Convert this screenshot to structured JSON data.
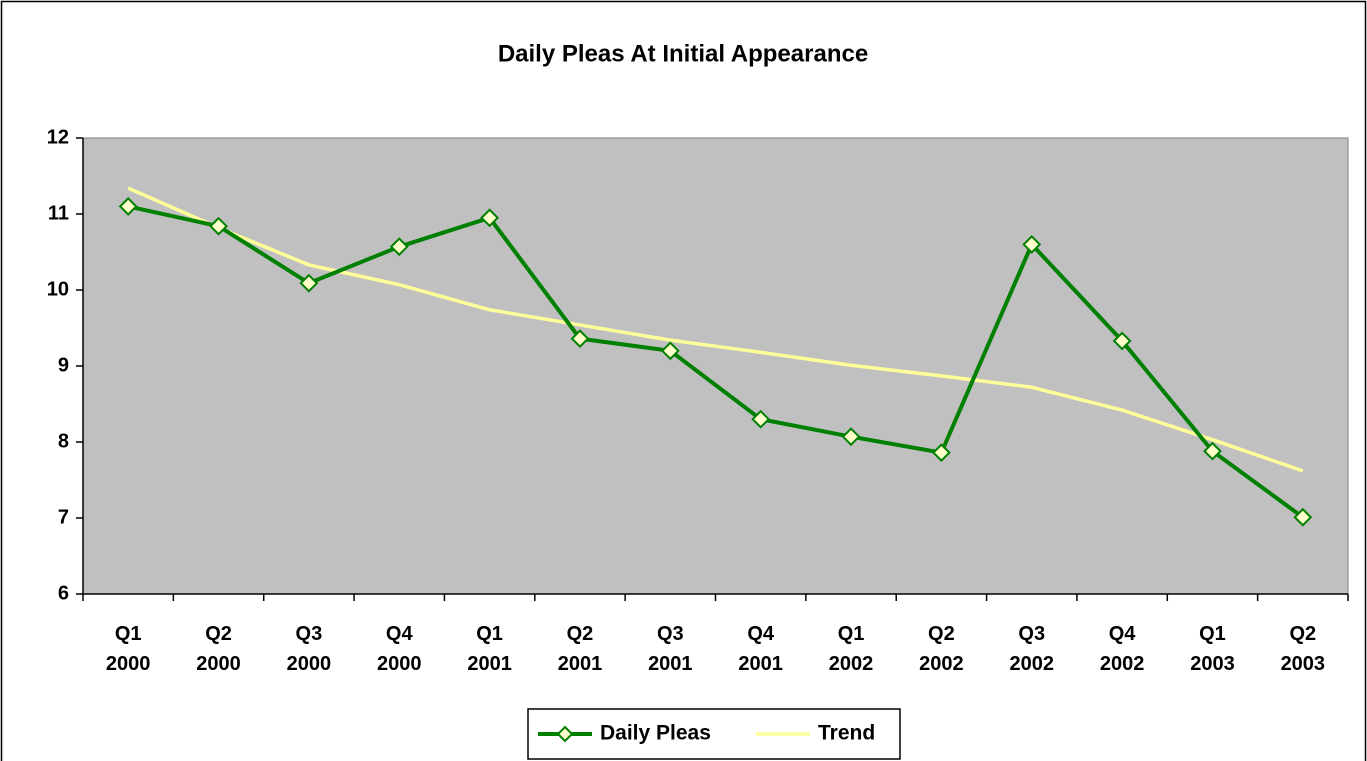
{
  "chart_data": {
    "type": "line",
    "title": "Daily Pleas At Initial Appearance",
    "categories": [
      "Q1 2000",
      "Q2 2000",
      "Q3 2000",
      "Q4 2000",
      "Q1 2001",
      "Q2 2001",
      "Q3 2001",
      "Q4 2001",
      "Q1 2002",
      "Q2 2002",
      "Q3 2002",
      "Q4 2002",
      "Q1 2003",
      "Q2 2003"
    ],
    "series": [
      {
        "name": "Daily Pleas",
        "color": "#008000",
        "marker_fill": "#ffffcc",
        "values": [
          11.1,
          10.84,
          10.09,
          10.57,
          10.95,
          9.36,
          9.2,
          8.3,
          8.07,
          7.86,
          10.6,
          9.33,
          7.88,
          7.01
        ]
      },
      {
        "name": "Trend",
        "color": "#ffff99",
        "values": [
          11.34,
          10.82,
          10.33,
          10.07,
          9.74,
          9.54,
          9.34,
          9.18,
          9.01,
          8.87,
          8.72,
          8.42,
          8.03,
          7.62
        ]
      }
    ],
    "ylim": [
      6,
      12
    ],
    "yticks": [
      6,
      7,
      8,
      9,
      10,
      11,
      12
    ],
    "plot_background": "#c0c0c0",
    "grid": false,
    "legend": "bottom"
  }
}
